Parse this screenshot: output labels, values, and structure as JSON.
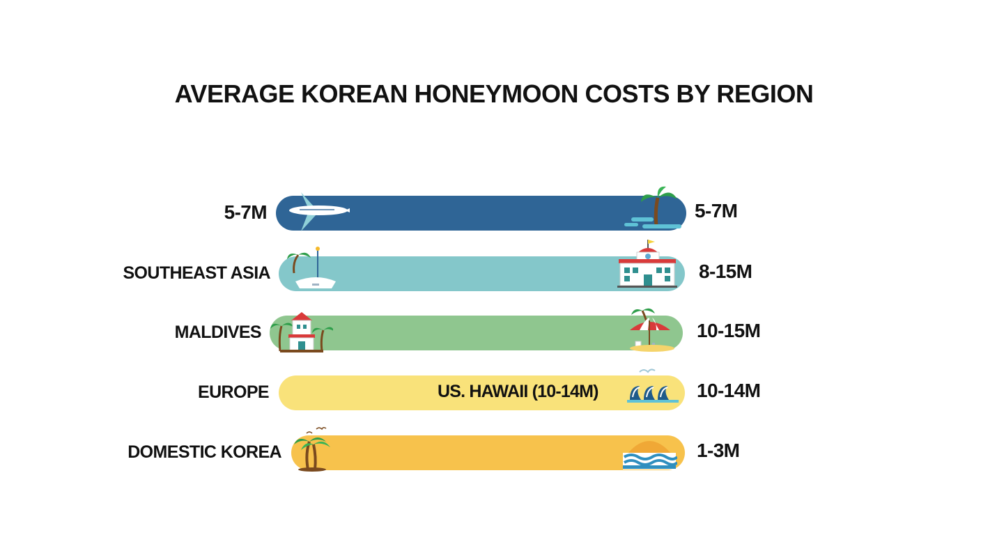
{
  "chart_data": {
    "type": "bar",
    "title": "AVERAGE KOREAN HONEYMOON COSTS BY REGION",
    "categories": [
      "5-7M",
      "SOUTHEAST ASIA",
      "MALDIVES",
      "EUROPE",
      "DOMESTIC KOREA"
    ],
    "value_labels": [
      "5-7M",
      "8-15M",
      "10-15M",
      "10-14M",
      "1-3M"
    ],
    "in_bar_annotations": [
      "",
      "",
      "",
      "US. HAWAII (10-14M)",
      ""
    ],
    "bar_colors": [
      "#2f6596",
      "#84c7ca",
      "#8fc68f",
      "#f9e27a",
      "#f7c24c"
    ],
    "icons_left": [
      "airplane-icon",
      "sailboat-icon",
      "beach-house-icon",
      "",
      "palm-tree-icon"
    ],
    "icons_right": [
      "island-palm-icon",
      "hotel-icon",
      "beach-umbrella-icon",
      "waves-icon",
      "sunset-icon"
    ],
    "xlabel": "",
    "ylabel": ""
  }
}
